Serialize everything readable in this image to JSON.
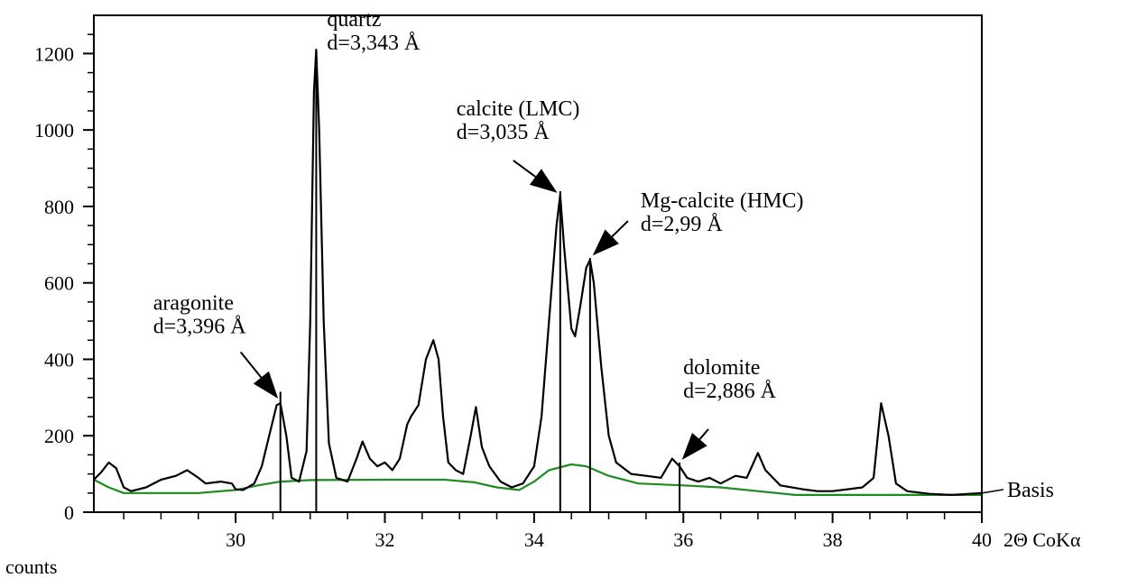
{
  "chart_data": {
    "type": "line",
    "title": "",
    "xlabel": "2Θ CoKα",
    "ylabel": "counts",
    "xlim": [
      28.1,
      40
    ],
    "ylim": [
      0,
      1300
    ],
    "x_ticks": [
      30,
      32,
      34,
      36,
      38,
      40
    ],
    "y_ticks": [
      0,
      200,
      400,
      600,
      800,
      1000,
      1200
    ],
    "grid": false,
    "series": [
      {
        "color": "#000000",
        "points": [
          [
            28.1,
            85
          ],
          [
            28.2,
            105
          ],
          [
            28.3,
            130
          ],
          [
            28.4,
            115
          ],
          [
            28.5,
            65
          ],
          [
            28.6,
            55
          ],
          [
            28.8,
            65
          ],
          [
            29.0,
            85
          ],
          [
            29.2,
            95
          ],
          [
            29.35,
            110
          ],
          [
            29.5,
            90
          ],
          [
            29.6,
            75
          ],
          [
            29.8,
            80
          ],
          [
            29.95,
            75
          ],
          [
            30.0,
            60
          ],
          [
            30.1,
            58
          ],
          [
            30.25,
            75
          ],
          [
            30.35,
            120
          ],
          [
            30.45,
            200
          ],
          [
            30.55,
            280
          ],
          [
            30.6,
            285
          ],
          [
            30.68,
            200
          ],
          [
            30.75,
            90
          ],
          [
            30.85,
            80
          ],
          [
            30.95,
            160
          ],
          [
            31.0,
            500
          ],
          [
            31.05,
            1100
          ],
          [
            31.08,
            1210
          ],
          [
            31.12,
            1000
          ],
          [
            31.18,
            500
          ],
          [
            31.25,
            180
          ],
          [
            31.35,
            90
          ],
          [
            31.5,
            80
          ],
          [
            31.62,
            140
          ],
          [
            31.7,
            185
          ],
          [
            31.8,
            140
          ],
          [
            31.9,
            120
          ],
          [
            32.0,
            130
          ],
          [
            32.1,
            110
          ],
          [
            32.2,
            140
          ],
          [
            32.3,
            230
          ],
          [
            32.35,
            250
          ],
          [
            32.45,
            280
          ],
          [
            32.55,
            400
          ],
          [
            32.65,
            450
          ],
          [
            32.72,
            400
          ],
          [
            32.78,
            250
          ],
          [
            32.85,
            130
          ],
          [
            32.95,
            110
          ],
          [
            33.05,
            100
          ],
          [
            33.15,
            200
          ],
          [
            33.22,
            275
          ],
          [
            33.3,
            170
          ],
          [
            33.4,
            120
          ],
          [
            33.55,
            80
          ],
          [
            33.7,
            65
          ],
          [
            33.85,
            75
          ],
          [
            34.0,
            120
          ],
          [
            34.1,
            250
          ],
          [
            34.2,
            500
          ],
          [
            34.3,
            750
          ],
          [
            34.35,
            830
          ],
          [
            34.4,
            700
          ],
          [
            34.5,
            480
          ],
          [
            34.55,
            460
          ],
          [
            34.62,
            540
          ],
          [
            34.7,
            640
          ],
          [
            34.75,
            660
          ],
          [
            34.8,
            600
          ],
          [
            34.9,
            380
          ],
          [
            35.0,
            200
          ],
          [
            35.1,
            130
          ],
          [
            35.3,
            100
          ],
          [
            35.5,
            95
          ],
          [
            35.7,
            90
          ],
          [
            35.85,
            140
          ],
          [
            35.95,
            120
          ],
          [
            36.05,
            90
          ],
          [
            36.2,
            80
          ],
          [
            36.35,
            90
          ],
          [
            36.5,
            75
          ],
          [
            36.7,
            95
          ],
          [
            36.85,
            90
          ],
          [
            37.0,
            155
          ],
          [
            37.1,
            110
          ],
          [
            37.3,
            70
          ],
          [
            37.6,
            60
          ],
          [
            37.8,
            55
          ],
          [
            38.0,
            55
          ],
          [
            38.2,
            60
          ],
          [
            38.4,
            65
          ],
          [
            38.55,
            90
          ],
          [
            38.65,
            285
          ],
          [
            38.75,
            200
          ],
          [
            38.85,
            75
          ],
          [
            39.0,
            55
          ],
          [
            39.3,
            48
          ],
          [
            39.6,
            45
          ],
          [
            40.0,
            50
          ]
        ]
      },
      {
        "color": "#1f8a1f",
        "points": [
          [
            28.1,
            85
          ],
          [
            28.3,
            65
          ],
          [
            28.5,
            50
          ],
          [
            29.0,
            50
          ],
          [
            29.5,
            50
          ],
          [
            30.0,
            58
          ],
          [
            30.3,
            70
          ],
          [
            30.6,
            80
          ],
          [
            31.0,
            84
          ],
          [
            32.0,
            85
          ],
          [
            32.8,
            85
          ],
          [
            33.2,
            78
          ],
          [
            33.5,
            65
          ],
          [
            33.8,
            58
          ],
          [
            34.0,
            80
          ],
          [
            34.2,
            110
          ],
          [
            34.5,
            125
          ],
          [
            34.7,
            120
          ],
          [
            35.0,
            95
          ],
          [
            35.4,
            75
          ],
          [
            36.0,
            70
          ],
          [
            36.5,
            65
          ],
          [
            37.0,
            55
          ],
          [
            37.5,
            45
          ],
          [
            38.5,
            45
          ],
          [
            40.0,
            45
          ]
        ]
      }
    ],
    "stick_lines": [
      {
        "x": 30.6,
        "y": 315
      },
      {
        "x": 31.08,
        "y": 1210
      },
      {
        "x": 34.35,
        "y": 840
      },
      {
        "x": 34.75,
        "y": 665
      },
      {
        "x": 35.95,
        "y": 130
      }
    ],
    "annotations": [
      {
        "name": "aragonite",
        "lines": [
          "aragonite",
          "d=3,396 Å"
        ],
        "arrow_to": [
          30.6,
          290
        ]
      },
      {
        "name": "quartz",
        "lines": [
          "quartz",
          "d=3,343 Å"
        ]
      },
      {
        "name": "calcite",
        "lines": [
          "calcite (LMC)",
          "d=3,035 Å"
        ],
        "arrow_to": [
          34.35,
          830
        ]
      },
      {
        "name": "mg-calcite",
        "lines": [
          "Mg-calcite (HMC)",
          "d=2,99 Å"
        ],
        "arrow_to": [
          34.75,
          665
        ]
      },
      {
        "name": "dolomite",
        "lines": [
          "dolomite",
          "d=2,886 Å"
        ],
        "arrow_to": [
          35.95,
          130
        ]
      }
    ],
    "baseline_label": "Basis",
    "baseline_value": 45
  }
}
